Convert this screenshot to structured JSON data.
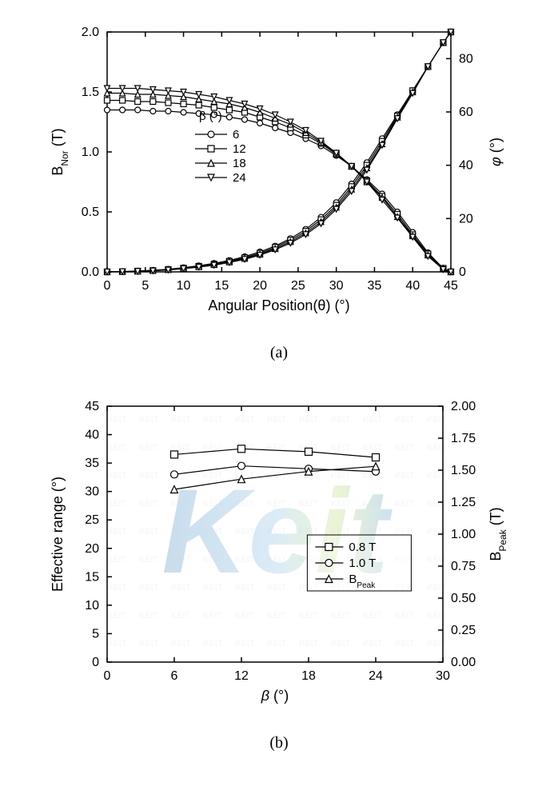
{
  "chartA": {
    "type": "line",
    "xlabel": "Angular Position(θ) (°)",
    "ylabel_left": "B",
    "ylabel_left_sub": "Nor",
    "ylabel_left_unit": " (T)",
    "ylabel_right": "φ (°)",
    "xlim": [
      0,
      45
    ],
    "ylim_left": [
      0,
      2.0
    ],
    "ylim_right": [
      0,
      90
    ],
    "xticks": [
      0,
      5,
      10,
      15,
      20,
      25,
      30,
      35,
      40,
      45
    ],
    "yticks_left": [
      0.0,
      0.5,
      1.0,
      1.5,
      2.0
    ],
    "yticks_right": [
      0,
      20,
      40,
      60,
      80
    ],
    "legend_title": "β (°)",
    "series": [
      {
        "label": "6",
        "marker": "circle",
        "bnor_x": [
          0,
          2,
          4,
          6,
          8,
          10,
          12,
          14,
          16,
          18,
          20,
          22,
          24,
          26,
          28,
          30,
          32,
          34,
          36,
          38,
          40,
          42,
          44,
          45
        ],
        "bnor_y": [
          1.35,
          1.35,
          1.35,
          1.34,
          1.34,
          1.33,
          1.32,
          1.31,
          1.29,
          1.27,
          1.24,
          1.2,
          1.16,
          1.11,
          1.05,
          0.97,
          0.88,
          0.77,
          0.65,
          0.5,
          0.33,
          0.16,
          0.03,
          0
        ],
        "phi_x": [
          0,
          2,
          4,
          6,
          8,
          10,
          12,
          14,
          16,
          18,
          20,
          22,
          24,
          26,
          28,
          30,
          32,
          34,
          36,
          38,
          40,
          42,
          44,
          45
        ],
        "phi_y": [
          0,
          0.1,
          0.3,
          0.6,
          1.0,
          1.6,
          2.3,
          3.2,
          4.3,
          5.7,
          7.5,
          9.7,
          12.5,
          16.0,
          20.5,
          26.0,
          33.0,
          41.0,
          50.0,
          59.0,
          68.0,
          77.0,
          86.0,
          90
        ]
      },
      {
        "label": "12",
        "marker": "square",
        "bnor_x": [
          0,
          2,
          4,
          6,
          8,
          10,
          12,
          14,
          16,
          18,
          20,
          22,
          24,
          26,
          28,
          30,
          32,
          34,
          36,
          38,
          40,
          42,
          44,
          45
        ],
        "bnor_y": [
          1.43,
          1.43,
          1.42,
          1.42,
          1.41,
          1.4,
          1.39,
          1.37,
          1.35,
          1.33,
          1.29,
          1.25,
          1.2,
          1.14,
          1.07,
          0.98,
          0.88,
          0.76,
          0.63,
          0.48,
          0.31,
          0.15,
          0.03,
          0
        ],
        "phi_x": [
          0,
          2,
          4,
          6,
          8,
          10,
          12,
          14,
          16,
          18,
          20,
          22,
          24,
          26,
          28,
          30,
          32,
          34,
          36,
          38,
          40,
          42,
          44,
          45
        ],
        "phi_y": [
          0,
          0.1,
          0.3,
          0.5,
          0.9,
          1.4,
          2.1,
          2.9,
          4.0,
          5.3,
          7.0,
          9.2,
          11.9,
          15.3,
          19.6,
          25.0,
          32.0,
          40.0,
          49.0,
          58.5,
          68.0,
          77.0,
          86.0,
          90
        ]
      },
      {
        "label": "18",
        "marker": "triangle",
        "bnor_x": [
          0,
          2,
          4,
          6,
          8,
          10,
          12,
          14,
          16,
          18,
          20,
          22,
          24,
          26,
          28,
          30,
          32,
          34,
          36,
          38,
          40,
          42,
          44,
          45
        ],
        "bnor_y": [
          1.49,
          1.49,
          1.48,
          1.48,
          1.47,
          1.46,
          1.44,
          1.42,
          1.4,
          1.37,
          1.33,
          1.28,
          1.23,
          1.16,
          1.08,
          0.99,
          0.88,
          0.75,
          0.62,
          0.46,
          0.3,
          0.14,
          0.03,
          0
        ],
        "phi_x": [
          0,
          2,
          4,
          6,
          8,
          10,
          12,
          14,
          16,
          18,
          20,
          22,
          24,
          26,
          28,
          30,
          32,
          34,
          36,
          38,
          40,
          42,
          44,
          45
        ],
        "phi_y": [
          0,
          0.1,
          0.2,
          0.5,
          0.8,
          1.3,
          1.9,
          2.7,
          3.7,
          5.0,
          6.6,
          8.7,
          11.3,
          14.6,
          18.8,
          24.2,
          31.0,
          39.0,
          48.0,
          58.0,
          67.5,
          77.0,
          86.0,
          90
        ]
      },
      {
        "label": "24",
        "marker": "triangle-down",
        "bnor_x": [
          0,
          2,
          4,
          6,
          8,
          10,
          12,
          14,
          16,
          18,
          20,
          22,
          24,
          26,
          28,
          30,
          32,
          34,
          36,
          38,
          40,
          42,
          44,
          45
        ],
        "bnor_y": [
          1.53,
          1.53,
          1.53,
          1.52,
          1.51,
          1.5,
          1.48,
          1.46,
          1.43,
          1.4,
          1.36,
          1.31,
          1.25,
          1.18,
          1.09,
          0.99,
          0.88,
          0.75,
          0.6,
          0.45,
          0.29,
          0.13,
          0.02,
          0
        ],
        "phi_x": [
          0,
          2,
          4,
          6,
          8,
          10,
          12,
          14,
          16,
          18,
          20,
          22,
          24,
          26,
          28,
          30,
          32,
          34,
          36,
          38,
          40,
          42,
          44,
          45
        ],
        "phi_y": [
          0,
          0.1,
          0.2,
          0.4,
          0.7,
          1.2,
          1.8,
          2.5,
          3.5,
          4.7,
          6.3,
          8.3,
          10.8,
          14.0,
          18.1,
          23.5,
          30.2,
          38.2,
          47.5,
          57.5,
          67.0,
          77.0,
          86.0,
          90
        ]
      }
    ],
    "background_color": "#ffffff",
    "line_color": "#000000"
  },
  "chartB": {
    "type": "line",
    "xlabel": "β  (°)",
    "ylabel_left": "Effective range (°)",
    "ylabel_right": "B",
    "ylabel_right_sub": "Peak",
    "ylabel_right_unit": " (T)",
    "xlim": [
      0,
      30
    ],
    "ylim_left": [
      0,
      45
    ],
    "ylim_right": [
      0,
      2.0
    ],
    "xticks": [
      0,
      6,
      12,
      18,
      24,
      30
    ],
    "yticks_left": [
      0,
      5,
      10,
      15,
      20,
      25,
      30,
      35,
      40,
      45
    ],
    "yticks_right": [
      0.0,
      0.25,
      0.5,
      0.75,
      1.0,
      1.25,
      1.5,
      1.75,
      2.0
    ],
    "series": [
      {
        "label": "0.8 T",
        "marker": "square",
        "axis": "left",
        "x": [
          6,
          12,
          18,
          24
        ],
        "y": [
          36.5,
          37.5,
          37.0,
          36.0
        ]
      },
      {
        "label": "1.0 T",
        "marker": "circle",
        "axis": "left",
        "x": [
          6,
          12,
          18,
          24
        ],
        "y": [
          33.0,
          34.5,
          34.0,
          33.5
        ]
      },
      {
        "label": "B_Peak",
        "marker": "triangle",
        "axis": "right",
        "x": [
          6,
          12,
          18,
          24
        ],
        "y": [
          1.35,
          1.43,
          1.49,
          1.53
        ]
      }
    ],
    "watermark": "KEIT",
    "background_color": "#ffffff",
    "line_color": "#000000"
  },
  "labels": {
    "sub_a": "(a)",
    "sub_b": "(b)"
  }
}
